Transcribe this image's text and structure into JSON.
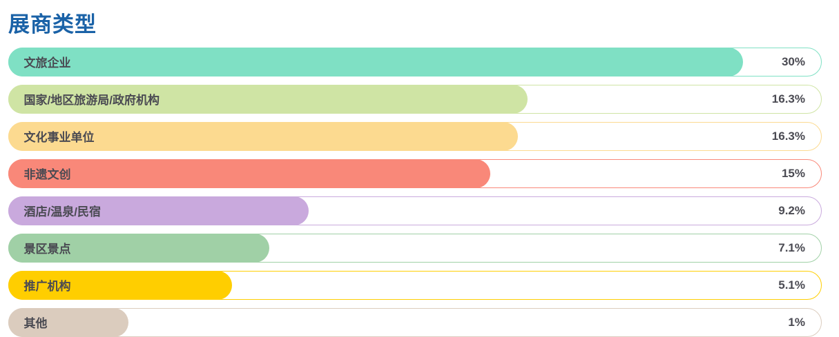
{
  "page": {
    "title": "展商类型",
    "title_color": "#1A62A7",
    "text_color": "#4A4A52",
    "background_color": "#FFFFFF"
  },
  "chart_data": {
    "type": "bar",
    "orientation": "horizontal",
    "title": "展商类型",
    "categories": [
      "文旅企业",
      "国家/地区旅游局/政府机构",
      "文化事业单位",
      "非遗文创",
      "酒店/温泉/民宿",
      "景区景点",
      "推广机构",
      "其他"
    ],
    "values": [
      30,
      16.3,
      16.3,
      15,
      9.2,
      7.1,
      5.1,
      1
    ],
    "value_labels": [
      "30%",
      "16.3%",
      "16.3%",
      "15%",
      "9.2%",
      "7.1%",
      "5.1%",
      "1%"
    ],
    "unit": "%",
    "colors": [
      "#7FE0C4",
      "#CFE4A4",
      "#FCDA90",
      "#F98879",
      "#C9A9DD",
      "#A0D0A6",
      "#FFCE00",
      "#DBCCBE"
    ],
    "track_background": "#FFFFFF",
    "grid": false,
    "legend": false,
    "bar_fractions": [
      0.905,
      0.64,
      0.628,
      0.594,
      0.37,
      0.322,
      0.276,
      0.148
    ]
  }
}
